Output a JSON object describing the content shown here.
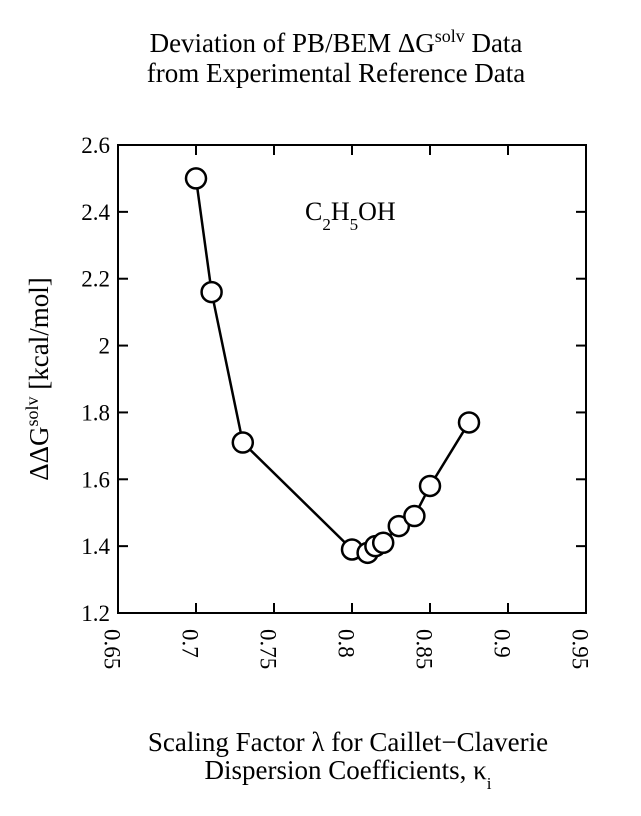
{
  "chart_data": {
    "type": "line",
    "title_line1": "Deviation of PB/BEM ΔG",
    "title_line1_sup": "solv",
    "title_line1_end": " Data",
    "title_line2": "from Experimental Reference Data",
    "annotation": {
      "main1": "C",
      "sub1": "2",
      "main2": "H",
      "sub2": "5",
      "main3": "OH"
    },
    "ylabel_main": "ΔΔG",
    "ylabel_sup": "solv",
    "ylabel_end": " [kcal/mol]",
    "xlabel_line1": "Scaling Factor λ for Caillet−Claverie",
    "xlabel_line2": "Dispersion Coefficients, κ",
    "xlabel_line2_sub": "i",
    "xlim": [
      0.65,
      0.95
    ],
    "ylim": [
      1.2,
      2.6
    ],
    "xticks": [
      0.65,
      0.7,
      0.75,
      0.8,
      0.85,
      0.9,
      0.95
    ],
    "xtick_labels": [
      "0.65",
      "0.7",
      "0.75",
      "0.8",
      "0.85",
      "0.9",
      "0.95"
    ],
    "yticks": [
      1.2,
      1.4,
      1.6,
      1.8,
      2.0,
      2.2,
      2.4,
      2.6
    ],
    "ytick_labels": [
      "1.2",
      "1.4",
      "1.6",
      "1.8",
      "2",
      "2.2",
      "2.4",
      "2.6"
    ],
    "grid": false,
    "series": [
      {
        "x": [
          0.7,
          0.71,
          0.73,
          0.8,
          0.81,
          0.815,
          0.82,
          0.83,
          0.84,
          0.85,
          0.875
        ],
        "y": [
          2.5,
          2.16,
          1.71,
          1.39,
          1.38,
          1.4,
          1.41,
          1.46,
          1.49,
          1.58,
          1.77
        ]
      }
    ]
  }
}
